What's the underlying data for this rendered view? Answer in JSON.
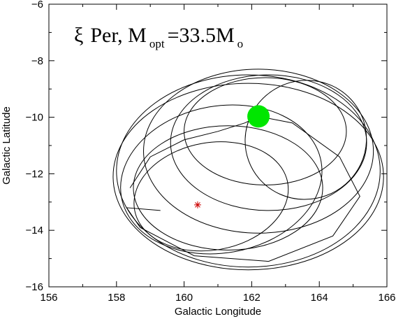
{
  "chart_data": {
    "type": "line",
    "xlabel": "Galactic Longitude",
    "ylabel": "Galactic Latitude",
    "xlim": [
      156,
      166
    ],
    "ylim": [
      -16,
      -6
    ],
    "xticks": [
      "156",
      "158",
      "160",
      "162",
      "164",
      "166"
    ],
    "yticks": [
      "-6",
      "-8",
      "-10",
      "-12",
      "-14",
      "-16"
    ],
    "grid": false,
    "annotation": {
      "symbol": "ξ",
      "text_before": "Per, M",
      "sub1": "opt",
      "middle": "=33.5M",
      "sub2": "o"
    },
    "current_position": {
      "x": 162.2,
      "y": -9.97,
      "marker": "filled circle",
      "color": "#00e600"
    },
    "reference_position": {
      "x": 160.4,
      "y": -13.1,
      "marker": "asterisk",
      "color": "#cc0000"
    },
    "orbits": [
      {
        "name": "",
        "cx": 161.9,
        "cy": -11.9,
        "rx": 3.9,
        "ry": 3.4,
        "rot": 0
      },
      {
        "name": "",
        "cx": 161.9,
        "cy": -12.1,
        "rx": 4.0,
        "ry": 3.3,
        "rot": 0
      },
      {
        "name": "",
        "cx": 162.2,
        "cy": -11.2,
        "rx": 3.4,
        "ry": 2.9,
        "rot": 0
      },
      {
        "name": "",
        "cx": 162.5,
        "cy": -10.9,
        "rx": 2.9,
        "ry": 2.4,
        "rot": 0
      },
      {
        "name": "",
        "cx": 162.4,
        "cy": -10.5,
        "rx": 2.4,
        "ry": 1.9,
        "rot": 0
      },
      {
        "name": "",
        "cx": 161.1,
        "cy": -12.2,
        "rx": 3.0,
        "ry": 2.6,
        "rot": -10
      },
      {
        "name": "",
        "cx": 160.8,
        "cy": -12.8,
        "rx": 2.3,
        "ry": 1.9,
        "rot": -10
      },
      {
        "name": "",
        "cx": 161.3,
        "cy": -12.5,
        "rx": 2.8,
        "ry": 2.2,
        "rot": 0
      },
      {
        "name": "",
        "cx": 163.6,
        "cy": -10.8,
        "rx": 1.8,
        "ry": 2.1,
        "rot": -20
      }
    ],
    "trajectory": [
      [
        158.4,
        -12.5
      ],
      [
        159.0,
        -11.4
      ],
      [
        160.0,
        -10.8
      ],
      [
        161.0,
        -10.5
      ],
      [
        161.8,
        -10.2
      ],
      [
        162.2,
        -9.97
      ],
      [
        163.2,
        -10.2
      ],
      [
        164.6,
        -11.4
      ],
      [
        165.2,
        -12.8
      ],
      [
        164.4,
        -14.2
      ],
      [
        162.5,
        -15.1
      ],
      [
        160.3,
        -14.9
      ],
      [
        158.7,
        -13.9
      ],
      [
        158.3,
        -13.2
      ],
      [
        159.3,
        -13.3
      ]
    ],
    "colors": {
      "axes": "#000000",
      "orbit": "#000000",
      "current": "#00e600",
      "reference": "#cc0000"
    }
  }
}
